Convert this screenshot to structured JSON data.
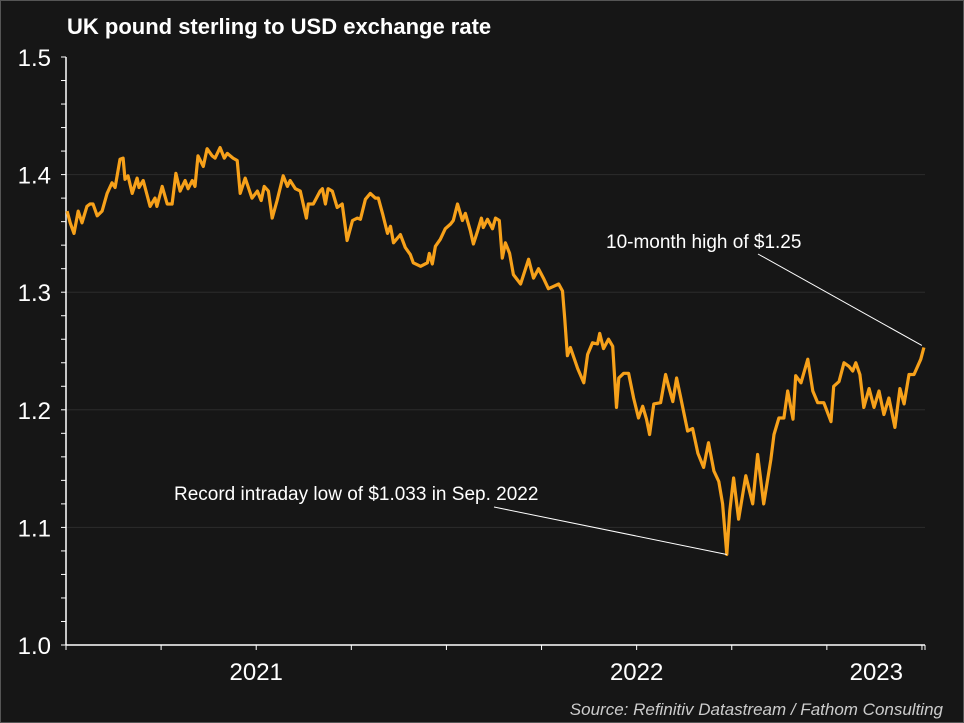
{
  "chart_data": {
    "type": "line",
    "title": "UK pound sterling to USD exchange rate",
    "xlabel": "",
    "ylabel": "",
    "x_unit": "year (decimal)",
    "xlim": [
      2021.0,
      2023.258
    ],
    "ylim": [
      1.0,
      1.5
    ],
    "yticks": [
      "1.0",
      "1.1",
      "1.2",
      "1.3",
      "1.4",
      "1.5"
    ],
    "xtick_labels": [
      {
        "label": "2021",
        "center": 2021.5
      },
      {
        "label": "2022",
        "center": 2022.5
      },
      {
        "label": "2023",
        "center": 2023.13
      }
    ],
    "grid": true,
    "legend": "none",
    "line_color": "#f7a11a",
    "background": "#161616",
    "annotations": [
      {
        "text": "10-month high of $1.25",
        "x": 2023.255,
        "y": 1.253
      },
      {
        "text": "Record intraday low of $1.033 in Sep. 2022",
        "x": 2022.737,
        "y": 1.077
      }
    ],
    "source": "Source: Refinitiv Datastream / Fathom Consulting",
    "x": [
      2021.003,
      2021.011,
      2021.021,
      2021.032,
      2021.042,
      2021.055,
      2021.063,
      2021.071,
      2021.082,
      2021.095,
      2021.108,
      2021.121,
      2021.129,
      2021.142,
      2021.15,
      2021.155,
      2021.163,
      2021.174,
      2021.187,
      2021.192,
      2021.203,
      2021.221,
      2021.234,
      2021.239,
      2021.253,
      2021.266,
      2021.279,
      2021.289,
      2021.3,
      2021.313,
      2021.321,
      2021.332,
      2021.339,
      2021.347,
      2021.361,
      2021.371,
      2021.384,
      2021.392,
      2021.405,
      2021.416,
      2021.424,
      2021.439,
      2021.45,
      2021.458,
      2021.471,
      2021.489,
      2021.503,
      2021.513,
      2021.521,
      2021.532,
      2021.542,
      2021.555,
      2021.571,
      2021.582,
      2021.589,
      2021.603,
      2021.616,
      2021.632,
      2021.637,
      2021.65,
      2021.668,
      2021.674,
      2021.682,
      2021.689,
      2021.7,
      2021.713,
      2021.726,
      2021.739,
      2021.753,
      2021.766,
      2021.774,
      2021.787,
      2021.8,
      2021.813,
      2021.821,
      2021.832,
      2021.845,
      2021.853,
      2021.861,
      2021.879,
      2021.892,
      2021.905,
      2021.913,
      2021.932,
      2021.95,
      2021.955,
      2021.963,
      2021.971,
      2021.984,
      2021.997,
      2022.011,
      2022.018,
      2022.029,
      2022.042,
      2022.05,
      2022.063,
      2022.071,
      2022.082,
      2022.092,
      2022.097,
      2022.108,
      2022.121,
      2022.129,
      2022.139,
      2022.147,
      2022.155,
      2022.166,
      2022.176,
      2022.195,
      2022.216,
      2022.229,
      2022.242,
      2022.255,
      2022.268,
      2022.282,
      2022.295,
      2022.305,
      2022.311,
      2022.318,
      2022.326,
      2022.345,
      2022.361,
      2022.371,
      2022.384,
      2022.397,
      2022.403,
      2022.413,
      2022.426,
      2022.437,
      2022.447,
      2022.453,
      2022.466,
      2022.479,
      2022.492,
      2022.505,
      2022.516,
      2022.526,
      2022.534,
      2022.545,
      2022.563,
      2022.576,
      2022.584,
      2022.595,
      2022.605,
      2022.616,
      2022.634,
      2022.647,
      2022.661,
      2022.676,
      2022.689,
      2022.703,
      2022.716,
      2022.726,
      2022.737,
      2022.745,
      2022.755,
      2022.768,
      2022.787,
      2022.805,
      2022.818,
      2022.834,
      2022.853,
      2022.861,
      2022.874,
      2022.887,
      2022.897,
      2022.911,
      2022.918,
      2022.932,
      2022.95,
      2022.963,
      2022.976,
      2022.992,
      2023.011,
      2023.018,
      2023.032,
      2023.045,
      2023.058,
      2023.068,
      2023.076,
      2023.087,
      2023.097,
      2023.111,
      2023.124,
      2023.137,
      2023.15,
      2023.163,
      2023.179,
      2023.192,
      2023.203,
      2023.216,
      2023.229,
      2023.247,
      2023.255
    ],
    "y": [
      1.369,
      1.359,
      1.35,
      1.369,
      1.359,
      1.373,
      1.375,
      1.375,
      1.365,
      1.369,
      1.384,
      1.393,
      1.389,
      1.413,
      1.414,
      1.396,
      1.399,
      1.384,
      1.397,
      1.389,
      1.395,
      1.373,
      1.38,
      1.373,
      1.39,
      1.375,
      1.375,
      1.401,
      1.386,
      1.395,
      1.388,
      1.395,
      1.39,
      1.416,
      1.407,
      1.422,
      1.416,
      1.414,
      1.423,
      1.414,
      1.418,
      1.414,
      1.412,
      1.384,
      1.397,
      1.38,
      1.386,
      1.378,
      1.39,
      1.386,
      1.363,
      1.378,
      1.399,
      1.39,
      1.395,
      1.388,
      1.386,
      1.363,
      1.375,
      1.375,
      1.386,
      1.388,
      1.375,
      1.388,
      1.386,
      1.372,
      1.375,
      1.344,
      1.361,
      1.363,
      1.362,
      1.379,
      1.384,
      1.38,
      1.38,
      1.367,
      1.35,
      1.356,
      1.342,
      1.349,
      1.338,
      1.332,
      1.325,
      1.322,
      1.325,
      1.333,
      1.324,
      1.339,
      1.345,
      1.354,
      1.358,
      1.361,
      1.375,
      1.361,
      1.367,
      1.352,
      1.341,
      1.352,
      1.363,
      1.355,
      1.362,
      1.354,
      1.363,
      1.361,
      1.329,
      1.342,
      1.333,
      1.315,
      1.307,
      1.328,
      1.312,
      1.32,
      1.312,
      1.303,
      1.305,
      1.307,
      1.301,
      1.278,
      1.246,
      1.253,
      1.235,
      1.223,
      1.247,
      1.257,
      1.256,
      1.265,
      1.252,
      1.26,
      1.254,
      1.202,
      1.227,
      1.231,
      1.231,
      1.21,
      1.193,
      1.203,
      1.192,
      1.179,
      1.205,
      1.206,
      1.23,
      1.22,
      1.207,
      1.227,
      1.21,
      1.182,
      1.184,
      1.163,
      1.151,
      1.172,
      1.148,
      1.139,
      1.12,
      1.077,
      1.114,
      1.142,
      1.107,
      1.144,
      1.12,
      1.162,
      1.12,
      1.158,
      1.179,
      1.193,
      1.193,
      1.216,
      1.192,
      1.229,
      1.223,
      1.243,
      1.216,
      1.206,
      1.206,
      1.19,
      1.22,
      1.224,
      1.24,
      1.237,
      1.233,
      1.24,
      1.23,
      1.202,
      1.218,
      1.202,
      1.216,
      1.196,
      1.21,
      1.185,
      1.218,
      1.205,
      1.23,
      1.23,
      1.243,
      1.253
    ]
  }
}
